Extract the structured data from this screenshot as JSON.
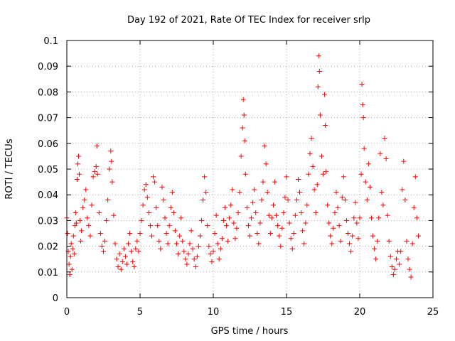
{
  "chart_data": {
    "type": "scatter",
    "title": "Day 192 of 2021, Rate Of TEC Index for receiver srlp",
    "xlabel": "GPS time / hours",
    "ylabel": "ROTI / TECUs",
    "xlim": [
      0,
      25
    ],
    "ylim": [
      0,
      0.1
    ],
    "x_ticks": [
      0,
      5,
      10,
      15,
      20,
      25
    ],
    "x_tick_labels": [
      "0",
      "5",
      "10",
      "15",
      "20",
      "25"
    ],
    "y_ticks": [
      0,
      0.01,
      0.02,
      0.03,
      0.04,
      0.05,
      0.06,
      0.07,
      0.08,
      0.09,
      0.1
    ],
    "y_tick_labels": [
      "0",
      "0.01",
      "0.02",
      "0.03",
      "0.04",
      "0.05",
      "0.06",
      "0.07",
      "0.08",
      "0.09",
      "0.1"
    ],
    "grid": true,
    "marker": "+",
    "marker_color": "#ff0000",
    "series": [
      {
        "name": "ROTI",
        "points": [
          [
            0.0,
            0.031
          ],
          [
            0.05,
            0.025
          ],
          [
            0.1,
            0.018
          ],
          [
            0.15,
            0.013
          ],
          [
            0.2,
            0.009
          ],
          [
            0.25,
            0.016
          ],
          [
            0.3,
            0.021
          ],
          [
            0.35,
            0.011
          ],
          [
            0.4,
            0.019
          ],
          [
            0.45,
            0.024
          ],
          [
            0.5,
            0.017
          ],
          [
            0.55,
            0.028
          ],
          [
            0.6,
            0.033
          ],
          [
            0.65,
            0.029
          ],
          [
            0.7,
            0.046
          ],
          [
            0.75,
            0.052
          ],
          [
            0.8,
            0.055
          ],
          [
            0.85,
            0.048
          ],
          [
            0.9,
            0.03
          ],
          [
            0.95,
            0.022
          ],
          [
            1.0,
            0.026
          ],
          [
            1.1,
            0.035
          ],
          [
            1.2,
            0.038
          ],
          [
            1.3,
            0.042
          ],
          [
            1.4,
            0.031
          ],
          [
            1.5,
            0.028
          ],
          [
            1.6,
            0.024
          ],
          [
            1.7,
            0.036
          ],
          [
            1.8,
            0.047
          ],
          [
            1.9,
            0.049
          ],
          [
            2.0,
            0.051
          ],
          [
            2.05,
            0.059
          ],
          [
            2.1,
            0.048
          ],
          [
            2.2,
            0.033
          ],
          [
            2.3,
            0.025
          ],
          [
            2.4,
            0.02
          ],
          [
            2.5,
            0.018
          ],
          [
            2.6,
            0.022
          ],
          [
            2.7,
            0.03
          ],
          [
            2.8,
            0.038
          ],
          [
            2.9,
            0.05
          ],
          [
            3.0,
            0.057
          ],
          [
            3.05,
            0.053
          ],
          [
            3.1,
            0.045
          ],
          [
            3.2,
            0.032
          ],
          [
            3.3,
            0.021
          ],
          [
            3.4,
            0.015
          ],
          [
            3.5,
            0.012
          ],
          [
            3.6,
            0.017
          ],
          [
            3.7,
            0.011
          ],
          [
            3.8,
            0.014
          ],
          [
            3.9,
            0.019
          ],
          [
            4.0,
            0.016
          ],
          [
            4.1,
            0.013
          ],
          [
            4.2,
            0.021
          ],
          [
            4.3,
            0.025
          ],
          [
            4.4,
            0.018
          ],
          [
            4.5,
            0.014
          ],
          [
            4.6,
            0.012
          ],
          [
            4.7,
            0.019
          ],
          [
            4.8,
            0.022
          ],
          [
            4.9,
            0.018
          ],
          [
            5.0,
            0.025
          ],
          [
            5.1,
            0.03
          ],
          [
            5.2,
            0.036
          ],
          [
            5.3,
            0.042
          ],
          [
            5.4,
            0.044
          ],
          [
            5.5,
            0.039
          ],
          [
            5.6,
            0.033
          ],
          [
            5.7,
            0.028
          ],
          [
            5.8,
            0.024
          ],
          [
            5.9,
            0.047
          ],
          [
            6.0,
            0.045
          ],
          [
            6.1,
            0.035
          ],
          [
            6.2,
            0.028
          ],
          [
            6.3,
            0.022
          ],
          [
            6.4,
            0.019
          ],
          [
            6.5,
            0.043
          ],
          [
            6.6,
            0.038
          ],
          [
            6.7,
            0.031
          ],
          [
            6.8,
            0.025
          ],
          [
            6.9,
            0.021
          ],
          [
            7.0,
            0.028
          ],
          [
            7.1,
            0.035
          ],
          [
            7.2,
            0.041
          ],
          [
            7.3,
            0.033
          ],
          [
            7.4,
            0.026
          ],
          [
            7.5,
            0.021
          ],
          [
            7.6,
            0.017
          ],
          [
            7.7,
            0.024
          ],
          [
            7.8,
            0.031
          ],
          [
            7.9,
            0.022
          ],
          [
            8.0,
            0.018
          ],
          [
            8.1,
            0.015
          ],
          [
            8.2,
            0.013
          ],
          [
            8.3,
            0.017
          ],
          [
            8.4,
            0.021
          ],
          [
            8.5,
            0.026
          ],
          [
            8.6,
            0.019
          ],
          [
            8.7,
            0.015
          ],
          [
            8.8,
            0.012
          ],
          [
            8.9,
            0.016
          ],
          [
            9.0,
            0.02
          ],
          [
            9.1,
            0.024
          ],
          [
            9.2,
            0.03
          ],
          [
            9.3,
            0.038
          ],
          [
            9.4,
            0.047
          ],
          [
            9.5,
            0.041
          ],
          [
            9.6,
            0.028
          ],
          [
            9.7,
            0.02
          ],
          [
            9.8,
            0.017
          ],
          [
            9.9,
            0.014
          ],
          [
            10.0,
            0.018
          ],
          [
            10.1,
            0.025
          ],
          [
            10.2,
            0.032
          ],
          [
            10.3,
            0.021
          ],
          [
            10.4,
            0.015
          ],
          [
            10.5,
            0.019
          ],
          [
            10.6,
            0.023
          ],
          [
            10.7,
            0.03
          ],
          [
            10.8,
            0.035
          ],
          [
            10.9,
            0.028
          ],
          [
            11.0,
            0.022
          ],
          [
            11.1,
            0.031
          ],
          [
            11.2,
            0.036
          ],
          [
            11.3,
            0.042
          ],
          [
            11.4,
            0.029
          ],
          [
            11.5,
            0.023
          ],
          [
            11.6,
            0.027
          ],
          [
            11.7,
            0.033
          ],
          [
            11.8,
            0.041
          ],
          [
            11.9,
            0.055
          ],
          [
            12.0,
            0.066
          ],
          [
            12.05,
            0.077
          ],
          [
            12.1,
            0.071
          ],
          [
            12.15,
            0.061
          ],
          [
            12.2,
            0.048
          ],
          [
            12.3,
            0.035
          ],
          [
            12.4,
            0.028
          ],
          [
            12.5,
            0.024
          ],
          [
            12.6,
            0.031
          ],
          [
            12.7,
            0.037
          ],
          [
            12.8,
            0.042
          ],
          [
            12.9,
            0.033
          ],
          [
            13.0,
            0.025
          ],
          [
            13.1,
            0.021
          ],
          [
            13.2,
            0.029
          ],
          [
            13.3,
            0.038
          ],
          [
            13.4,
            0.045
          ],
          [
            13.5,
            0.059
          ],
          [
            13.6,
            0.052
          ],
          [
            13.7,
            0.041
          ],
          [
            13.8,
            0.032
          ],
          [
            13.9,
            0.025
          ],
          [
            14.0,
            0.031
          ],
          [
            14.1,
            0.036
          ],
          [
            14.2,
            0.045
          ],
          [
            14.3,
            0.032
          ],
          [
            14.4,
            0.028
          ],
          [
            14.5,
            0.024
          ],
          [
            14.6,
            0.02
          ],
          [
            14.7,
            0.027
          ],
          [
            14.8,
            0.033
          ],
          [
            14.9,
            0.039
          ],
          [
            15.0,
            0.047
          ],
          [
            15.1,
            0.038
          ],
          [
            15.2,
            0.029
          ],
          [
            15.3,
            0.023
          ],
          [
            15.4,
            0.019
          ],
          [
            15.5,
            0.025
          ],
          [
            15.6,
            0.032
          ],
          [
            15.7,
            0.038
          ],
          [
            15.8,
            0.046
          ],
          [
            15.9,
            0.041
          ],
          [
            16.0,
            0.033
          ],
          [
            16.1,
            0.026
          ],
          [
            16.2,
            0.021
          ],
          [
            16.3,
            0.029
          ],
          [
            16.4,
            0.036
          ],
          [
            16.5,
            0.048
          ],
          [
            16.6,
            0.056
          ],
          [
            16.7,
            0.062
          ],
          [
            16.8,
            0.051
          ],
          [
            16.9,
            0.042
          ],
          [
            17.0,
            0.033
          ],
          [
            17.1,
            0.044
          ],
          [
            17.15,
            0.082
          ],
          [
            17.2,
            0.094
          ],
          [
            17.25,
            0.088
          ],
          [
            17.3,
            0.071
          ],
          [
            17.4,
            0.055
          ],
          [
            17.5,
            0.048
          ],
          [
            17.6,
            0.079
          ],
          [
            17.65,
            0.067
          ],
          [
            17.7,
            0.049
          ],
          [
            17.8,
            0.036
          ],
          [
            17.9,
            0.029
          ],
          [
            18.0,
            0.024
          ],
          [
            18.1,
            0.021
          ],
          [
            18.2,
            0.027
          ],
          [
            18.3,
            0.033
          ],
          [
            18.4,
            0.041
          ],
          [
            18.5,
            0.035
          ],
          [
            18.6,
            0.028
          ],
          [
            18.7,
            0.022
          ],
          [
            18.8,
            0.039
          ],
          [
            18.9,
            0.047
          ],
          [
            19.0,
            0.038
          ],
          [
            19.1,
            0.03
          ],
          [
            19.2,
            0.025
          ],
          [
            19.3,
            0.021
          ],
          [
            19.4,
            0.018
          ],
          [
            19.5,
            0.024
          ],
          [
            19.6,
            0.031
          ],
          [
            19.7,
            0.037
          ],
          [
            19.8,
            0.029
          ],
          [
            19.9,
            0.023
          ],
          [
            20.0,
            0.031
          ],
          [
            20.1,
            0.048
          ],
          [
            20.15,
            0.083
          ],
          [
            20.2,
            0.075
          ],
          [
            20.25,
            0.07
          ],
          [
            20.3,
            0.058
          ],
          [
            20.4,
            0.045
          ],
          [
            20.5,
            0.038
          ],
          [
            20.6,
            0.052
          ],
          [
            20.7,
            0.043
          ],
          [
            20.8,
            0.031
          ],
          [
            20.9,
            0.024
          ],
          [
            21.0,
            0.019
          ],
          [
            21.1,
            0.015
          ],
          [
            21.2,
            0.022
          ],
          [
            21.3,
            0.031
          ],
          [
            21.4,
            0.056
          ],
          [
            21.5,
            0.041
          ],
          [
            21.6,
            0.036
          ],
          [
            21.7,
            0.062
          ],
          [
            21.8,
            0.054
          ],
          [
            21.9,
            0.032
          ],
          [
            22.0,
            0.022
          ],
          [
            22.1,
            0.016
          ],
          [
            22.2,
            0.012
          ],
          [
            22.3,
            0.009
          ],
          [
            22.4,
            0.011
          ],
          [
            22.5,
            0.015
          ],
          [
            22.6,
            0.018
          ],
          [
            22.7,
            0.013
          ],
          [
            22.8,
            0.018
          ],
          [
            22.9,
            0.042
          ],
          [
            23.0,
            0.053
          ],
          [
            23.1,
            0.038
          ],
          [
            23.2,
            0.022
          ],
          [
            23.3,
            0.015
          ],
          [
            23.4,
            0.011
          ],
          [
            23.5,
            0.008
          ],
          [
            23.6,
            0.021
          ],
          [
            23.7,
            0.035
          ],
          [
            23.8,
            0.047
          ],
          [
            23.9,
            0.031
          ],
          [
            24.0,
            0.024
          ]
        ]
      }
    ]
  }
}
